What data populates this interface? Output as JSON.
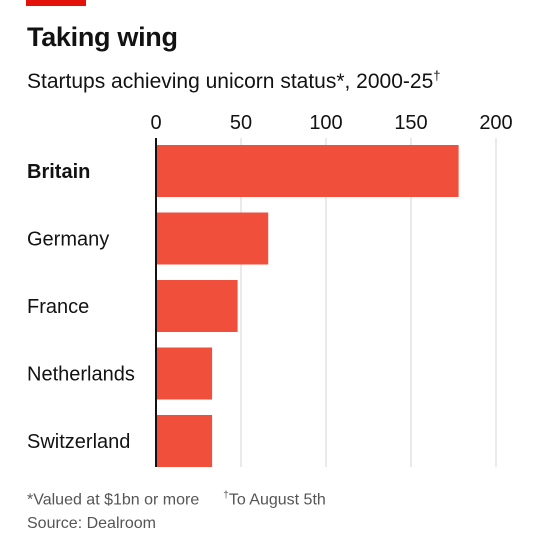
{
  "brand_color": "#e3120b",
  "title": "Taking wing",
  "subtitle": "Startups achieving unicorn status*, 2000-25",
  "subtitle_mark": "†",
  "chart_data": {
    "type": "bar",
    "orientation": "horizontal",
    "categories": [
      "Britain",
      "Germany",
      "France",
      "Netherlands",
      "Switzerland"
    ],
    "values": [
      178,
      66,
      48,
      33,
      33
    ],
    "highlight_category": "Britain",
    "xlim": [
      0,
      200
    ],
    "xticks": [
      0,
      50,
      100,
      150,
      200
    ],
    "xtick_labels": [
      "0",
      "50",
      "100",
      "150",
      "200"
    ],
    "tick_position": "top",
    "grid": true,
    "bar_color": "#ef4f3b",
    "grid_color": "#d4d4d4"
  },
  "footnotes": {
    "note1": "*Valued at $1bn or more",
    "note2_mark": "†",
    "note2": "To August 5th",
    "source": "Source: Dealroom"
  }
}
